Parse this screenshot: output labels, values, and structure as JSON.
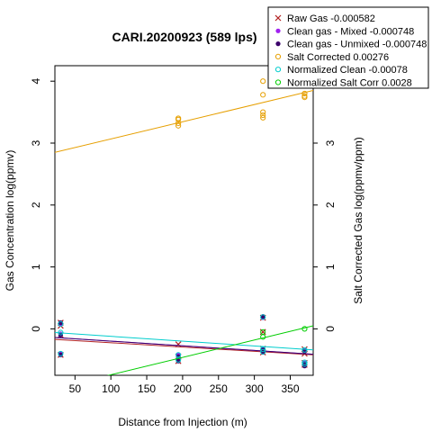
{
  "chart_data": {
    "type": "scatter",
    "title": "CARI.20200923 (589 lps)",
    "xlabel": "Distance from Injection (m)",
    "ylabel": "Gas Concentration log(ppmv)",
    "ylabel_right": "Salt Corrected Gas log(ppmv/ppm)",
    "xlim": [
      22,
      382
    ],
    "ylim": [
      -0.75,
      4.25
    ],
    "x_ticks": [
      50,
      100,
      150,
      200,
      250,
      300,
      350
    ],
    "y_ticks": [
      0,
      1,
      2,
      3,
      4
    ],
    "y_ticks_right": [
      0,
      1,
      2,
      3
    ],
    "ylim_right": [
      -0.75,
      4.25
    ],
    "grid": false,
    "legend_position": "top-right",
    "series": [
      {
        "name": "Raw Gas -0.000582",
        "marker": "x",
        "color": "#b22222",
        "x": [
          30,
          30,
          30,
          30,
          194,
          194,
          194,
          312,
          312,
          312,
          312,
          370,
          370,
          370,
          370
        ],
        "y": [
          0.1,
          0.05,
          -0.1,
          -0.42,
          -0.25,
          -0.45,
          -0.52,
          0.18,
          -0.05,
          -0.32,
          -0.38,
          -0.33,
          -0.4,
          -0.55,
          -0.58
        ],
        "fit": {
          "x": [
            22,
            382
          ],
          "y": [
            -0.17,
            -0.42
          ]
        }
      },
      {
        "name": "Clean gas - Mixed -0.000748",
        "marker": "dot",
        "color": "#a020f0",
        "x": [
          30,
          30,
          30,
          194,
          194,
          312,
          312,
          312,
          370,
          370,
          370
        ],
        "y": [
          0.08,
          -0.08,
          -0.4,
          -0.42,
          -0.5,
          0.18,
          -0.33,
          -0.36,
          -0.35,
          -0.55,
          -0.58
        ],
        "fit": {
          "x": [
            22,
            382
          ],
          "y": [
            -0.14,
            -0.41
          ]
        }
      },
      {
        "name": "Clean gas - Unmixed -0.000748",
        "marker": "dot",
        "color": "#3b006b",
        "x": [
          30,
          30,
          30,
          194,
          194,
          312,
          312,
          312,
          370,
          370,
          370
        ],
        "y": [
          0.1,
          -0.1,
          -0.42,
          -0.45,
          -0.52,
          0.2,
          -0.34,
          -0.38,
          -0.36,
          -0.56,
          -0.6
        ],
        "fit": {
          "x": [
            22,
            382
          ],
          "y": [
            -0.14,
            -0.41
          ]
        }
      },
      {
        "name": "Salt Corrected 0.00276",
        "marker": "circle",
        "color": "#e69f00",
        "x": [
          194,
          194,
          194,
          194,
          312,
          312,
          312,
          312,
          312,
          370,
          370,
          370
        ],
        "y": [
          3.38,
          3.32,
          3.28,
          3.4,
          4.0,
          3.78,
          3.5,
          3.45,
          3.41,
          3.8,
          3.76,
          3.74
        ],
        "fit": {
          "x": [
            22,
            382
          ],
          "y": [
            2.85,
            3.85
          ]
        }
      },
      {
        "name": "Normalized Clean -0.00078",
        "marker": "circle",
        "color": "#00cdcd",
        "x": [
          30,
          30,
          30,
          194,
          194,
          312,
          312,
          312,
          370,
          370,
          370
        ],
        "y": [
          0.08,
          -0.06,
          -0.4,
          -0.42,
          -0.5,
          0.19,
          -0.33,
          -0.37,
          -0.34,
          -0.54,
          -0.57
        ],
        "fit": {
          "x": [
            22,
            382
          ],
          "y": [
            -0.06,
            -0.34
          ]
        }
      },
      {
        "name": "Normalized Salt Corr 0.0028",
        "marker": "circle",
        "color": "#00cd00",
        "x": [
          312,
          312,
          370
        ],
        "y": [
          -0.05,
          -0.13,
          0.0
        ],
        "fit": {
          "x": [
            22,
            382
          ],
          "y": [
            -0.96,
            0.05
          ]
        }
      }
    ]
  }
}
